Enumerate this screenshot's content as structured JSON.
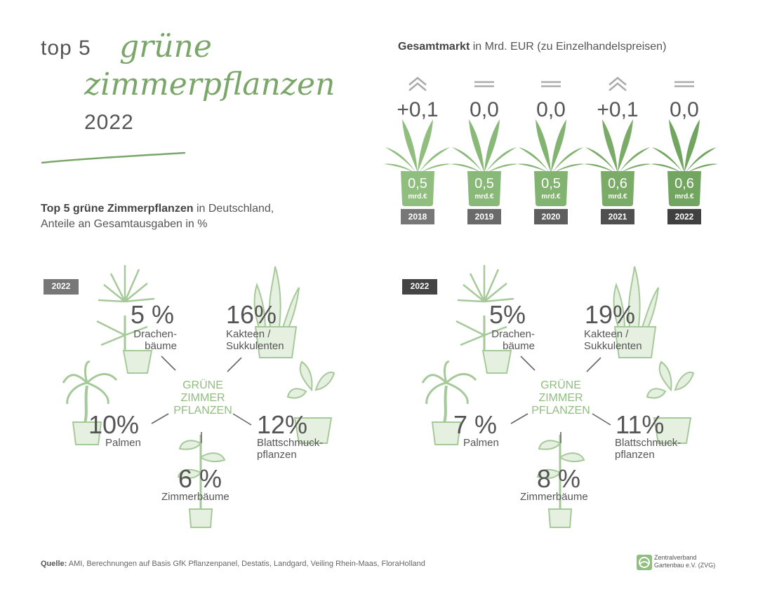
{
  "title": {
    "prefix": "top 5",
    "script_line1": "grüne",
    "script_line2": "zimmerpflanzen",
    "year": "2022"
  },
  "subtitle": {
    "bold": "Top 5 grüne Zimmerpflanzen",
    "rest": " in Deutschland,",
    "line2": "Anteile an Gesamtausgaben in %"
  },
  "market": {
    "heading_bold": "Gesamtmarkt",
    "heading_rest": " in Mrd. EUR (zu Einzelhandelspreisen)",
    "unit": "mrd.€",
    "years": [
      {
        "year": "2018",
        "value": "0,5",
        "change": "+0,1",
        "trend": "up",
        "color": "#8fbe7e",
        "badge": "#777777"
      },
      {
        "year": "2019",
        "value": "0,5",
        "change": "0,0",
        "trend": "flat",
        "color": "#89b978",
        "badge": "#6a6a6a"
      },
      {
        "year": "2020",
        "value": "0,5",
        "change": "0,0",
        "trend": "flat",
        "color": "#82b371",
        "badge": "#5e5e5e"
      },
      {
        "year": "2021",
        "value": "0,6",
        "change": "+0,1",
        "trend": "up",
        "color": "#7aac68",
        "badge": "#505050"
      },
      {
        "year": "2022",
        "value": "0,6",
        "change": "0,0",
        "trend": "flat",
        "color": "#72a660",
        "badge": "#404040"
      }
    ]
  },
  "hub_label": [
    "GRÜNE",
    "ZIMMER",
    "PFLANZEN"
  ],
  "chart_data": [
    {
      "type": "table",
      "title": "2022",
      "categories": [
        "Drachenbäume",
        "Kakteen / Sukkulenten",
        "Palmen",
        "Blattschmuckpflanzen",
        "Zimmerbäume"
      ],
      "values": [
        5,
        16,
        10,
        12,
        6
      ],
      "labels": [
        "5 %",
        "16%",
        "10%",
        "12%",
        "6 %"
      ]
    },
    {
      "type": "table",
      "title": "2022",
      "categories": [
        "Drachenbäume",
        "Kakteen / Sukkulenten",
        "Palmen",
        "Blattschmuckpflanzen",
        "Zimmerbäume"
      ],
      "values": [
        5,
        19,
        7,
        11,
        8
      ],
      "labels": [
        "5%",
        "19%",
        "7 %",
        "11%",
        "8 %"
      ]
    },
    {
      "type": "bar",
      "title": "Gesamtmarkt in Mrd. EUR (zu Einzelhandelspreisen)",
      "categories": [
        "2018",
        "2019",
        "2020",
        "2021",
        "2022"
      ],
      "values": [
        0.5,
        0.5,
        0.5,
        0.6,
        0.6
      ],
      "changes": [
        0.1,
        0.0,
        0.0,
        0.1,
        0.0
      ]
    }
  ],
  "category_labels": {
    "drachen": [
      "Drachen-",
      "bäume"
    ],
    "kakteen": [
      "Kakteen /",
      "Sukkulenten"
    ],
    "palmen": [
      "Palmen"
    ],
    "blatt": [
      "Blattschmuck-",
      "pflanzen"
    ],
    "zimmer": [
      "Zimmerbäume"
    ]
  },
  "source": {
    "bold": "Quelle:",
    "text": " AMI, Berechnungen auf Basis GfK Pflanzenpanel, Destatis, Landgard, Veiling Rhein-Maas, FloraHolland"
  },
  "logo": {
    "line1": "Zentralverband",
    "line2": "Gartenbau e.V. (ZVG)"
  }
}
